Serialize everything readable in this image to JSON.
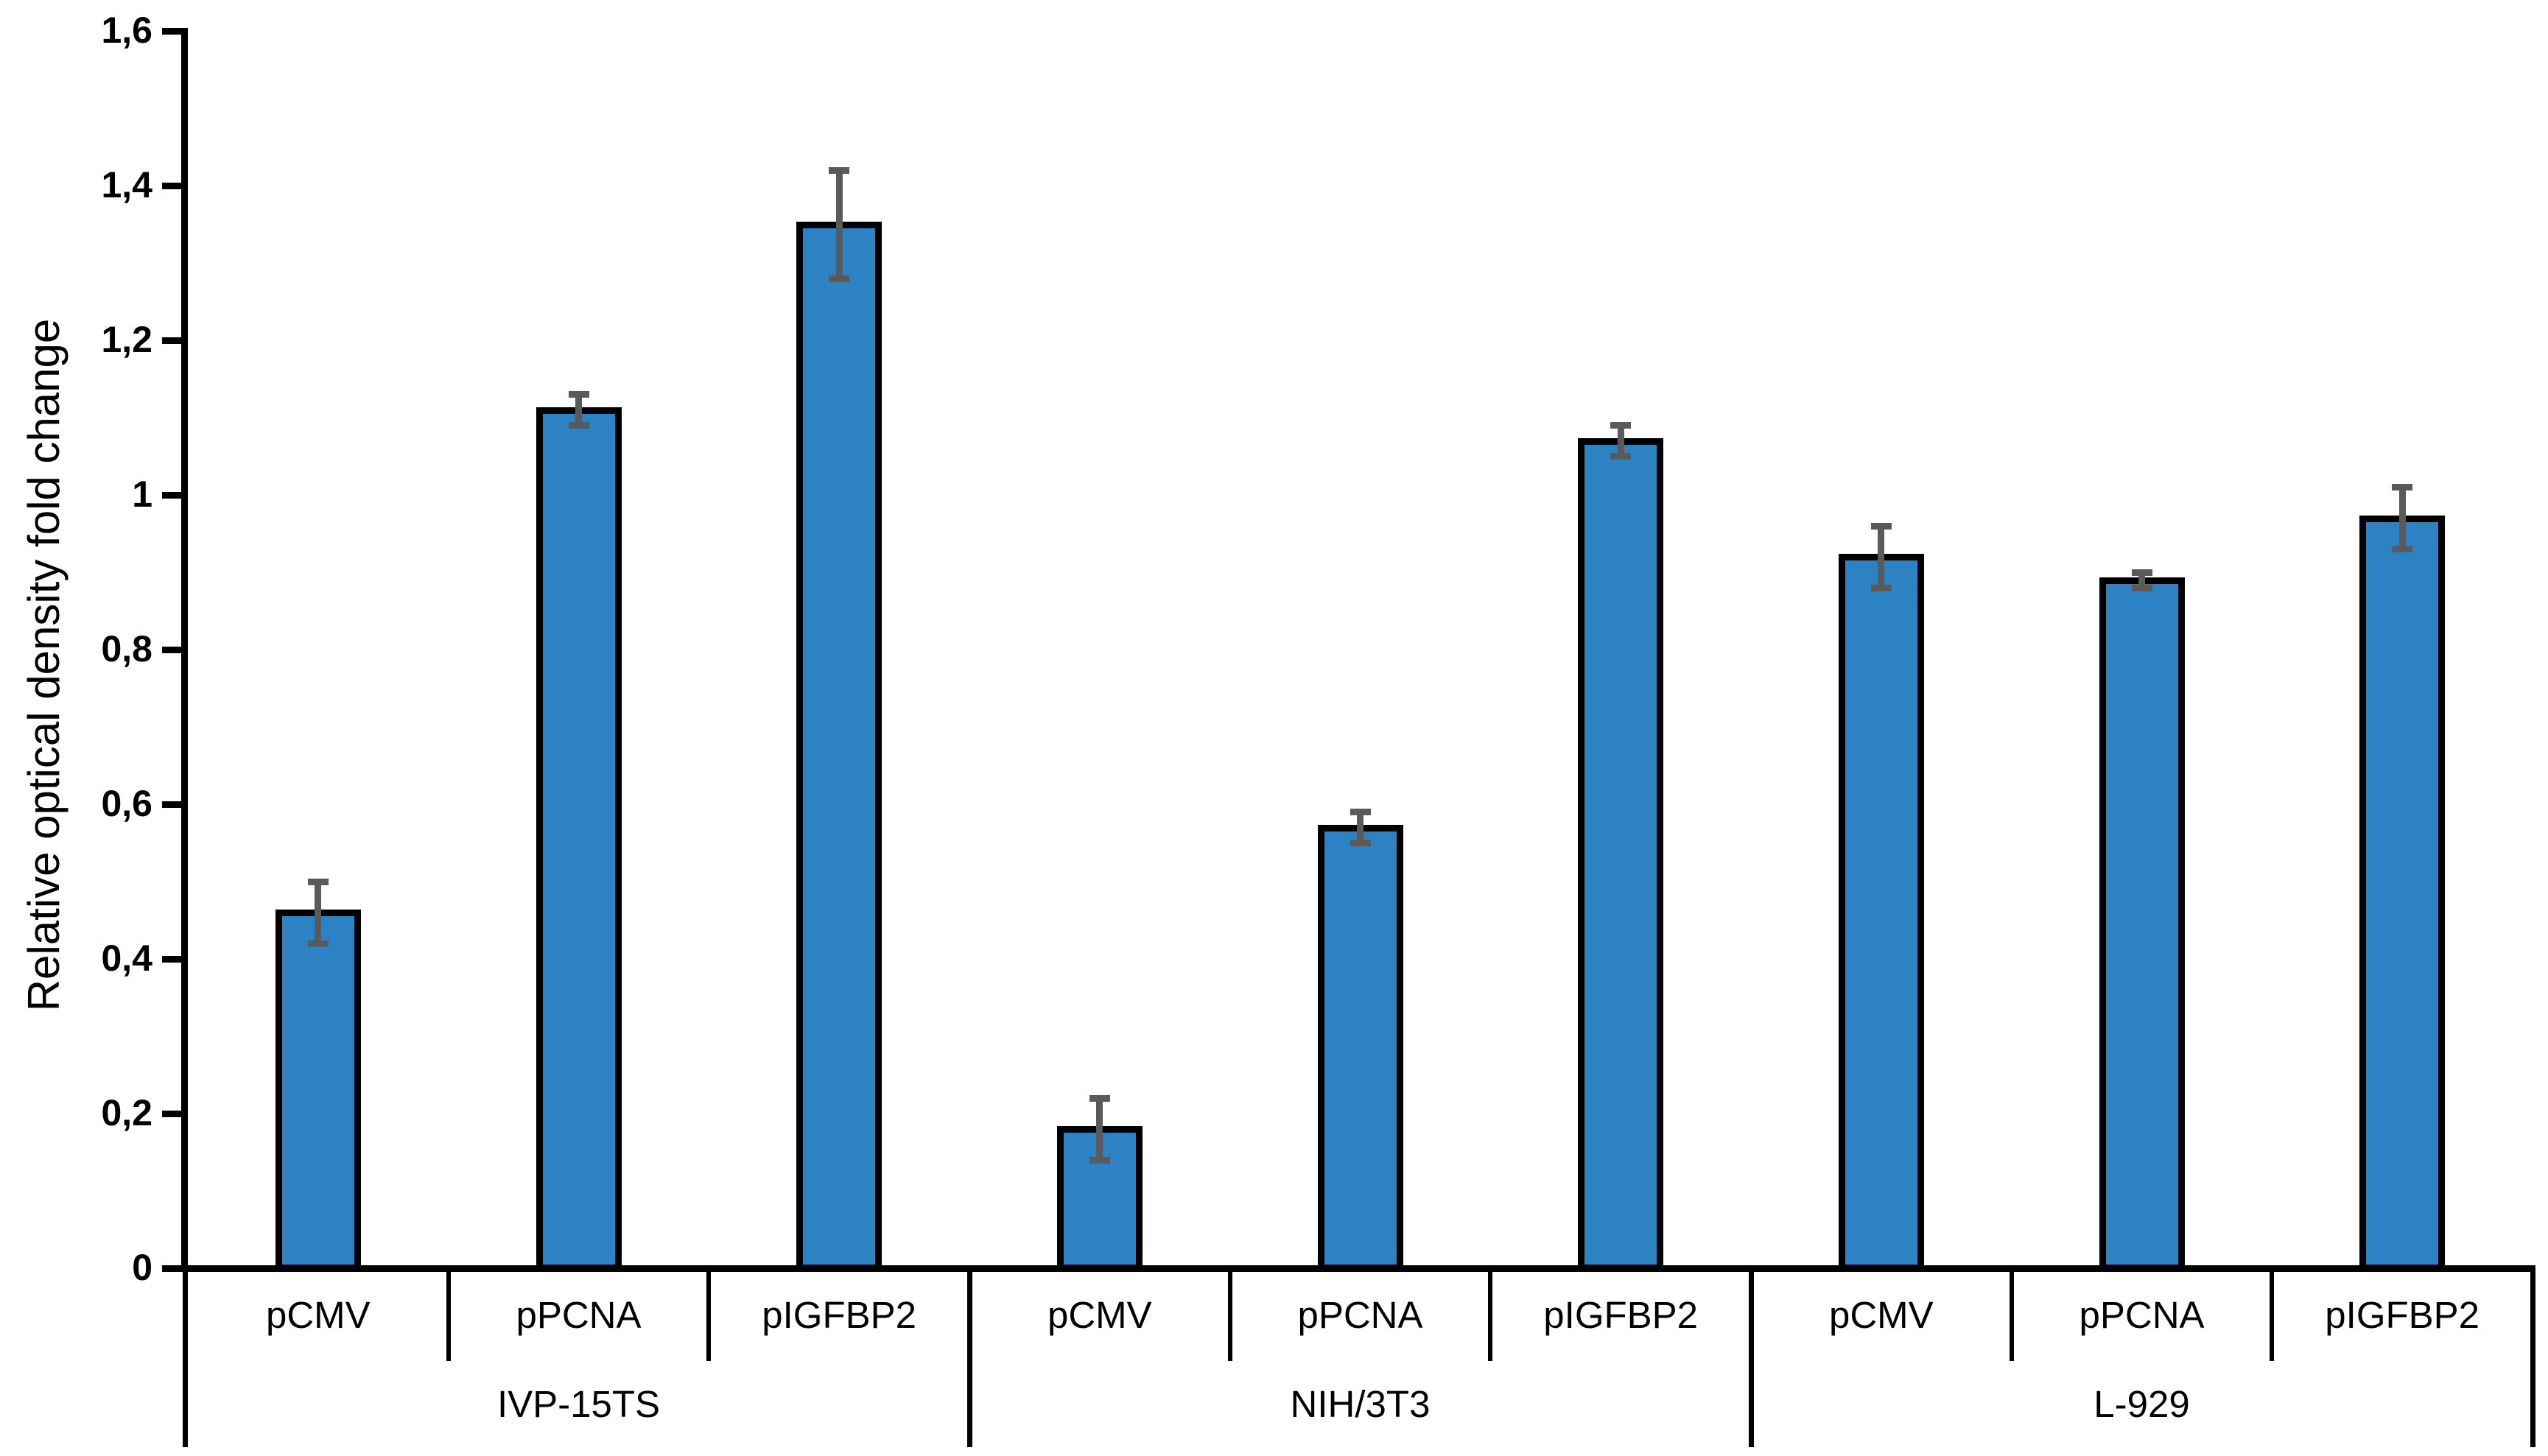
{
  "figure": {
    "background": "#FFFFFF",
    "text_color": "#000000"
  },
  "chart_data": {
    "type": "bar",
    "title": "",
    "ylabel": "Relative optical density fold change",
    "xlabel": "",
    "ylim": [
      0,
      1.6
    ],
    "ytick_step": 0.2,
    "decimal_separator": ",",
    "grid": false,
    "legend": null,
    "bar_color": "#2D82C3",
    "bar_border_color": "#000000",
    "error_bar_color": "#5A5A5A",
    "yticks": [
      {
        "value": 0,
        "label": "0"
      },
      {
        "value": 0.2,
        "label": "0,2"
      },
      {
        "value": 0.4,
        "label": "0,4"
      },
      {
        "value": 0.6,
        "label": "0,6"
      },
      {
        "value": 0.8,
        "label": "0,8"
      },
      {
        "value": 1,
        "label": "1"
      },
      {
        "value": 1.2,
        "label": "1,2"
      },
      {
        "value": 1.4,
        "label": "1,4"
      },
      {
        "value": 1.6,
        "label": "1,6"
      }
    ],
    "groups": [
      {
        "name": "IVP-15TS",
        "bars": [
          {
            "label": "pCMV",
            "value": 0.46,
            "error": 0.04
          },
          {
            "label": "pPCNA",
            "value": 1.11,
            "error": 0.02
          },
          {
            "label": "pIGFBP2",
            "value": 1.35,
            "error": 0.07
          }
        ]
      },
      {
        "name": "NIH/3T3",
        "bars": [
          {
            "label": "pCMV",
            "value": 0.18,
            "error": 0.04
          },
          {
            "label": "pPCNA",
            "value": 0.57,
            "error": 0.02
          },
          {
            "label": "pIGFBP2",
            "value": 1.07,
            "error": 0.02
          }
        ]
      },
      {
        "name": "L-929",
        "bars": [
          {
            "label": "pCMV",
            "value": 0.92,
            "error": 0.04
          },
          {
            "label": "pPCNA",
            "value": 0.89,
            "error": 0.01
          },
          {
            "label": "pIGFBP2",
            "value": 0.97,
            "error": 0.04
          }
        ]
      }
    ]
  }
}
